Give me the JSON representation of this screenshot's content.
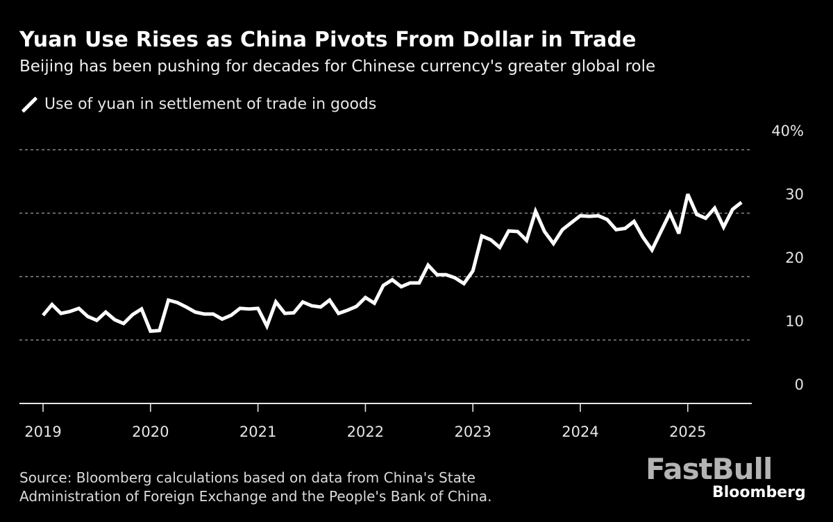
{
  "header": {
    "title": "Yuan Use Rises as China Pivots From Dollar in Trade",
    "subtitle": "Beijing has been pushing for decades for Chinese currency's greater global role"
  },
  "footer": {
    "source": "Source: Bloomberg calculations based on data from China's State\nAdministration of Foreign Exchange and the People's Bank of China."
  },
  "brand": {
    "watermark": "FastBull",
    "publisher": "Bloomberg"
  },
  "colors": {
    "background": "#000000",
    "line": "#ffffff",
    "grid": "#8a8a8a"
  },
  "chart_data": {
    "type": "line",
    "title": "Yuan Use Rises as China Pivots From Dollar in Trade",
    "subtitle": "Beijing has been pushing for decades for Chinese currency's greater global role",
    "xlabel": "",
    "ylabel": "",
    "y_unit": "%",
    "ylim": [
      0,
      40
    ],
    "yticks": [
      0,
      10,
      20,
      30,
      40
    ],
    "ytick_labels": [
      "0",
      "10",
      "20",
      "30",
      "40%"
    ],
    "y_axis_position": "right",
    "grid": true,
    "x_start": "2019-01",
    "x_frequency": "monthly",
    "xticks": [
      "2019",
      "2020",
      "2021",
      "2022",
      "2023",
      "2024",
      "2025"
    ],
    "xlim_months": [
      0,
      80
    ],
    "legend": {
      "position": "top-left",
      "entries": [
        "Use of yuan in settlement of trade in goods"
      ]
    },
    "series": [
      {
        "name": "Use of yuan in settlement of trade in goods",
        "values": [
          13.9,
          15.6,
          14.2,
          14.5,
          15.0,
          13.7,
          13.1,
          14.4,
          13.2,
          12.6,
          14.0,
          14.9,
          11.4,
          11.5,
          16.3,
          15.9,
          15.2,
          14.4,
          14.1,
          14.1,
          13.3,
          13.9,
          15.0,
          14.9,
          15.0,
          12.2,
          16.0,
          14.2,
          14.3,
          16.0,
          15.4,
          15.2,
          16.3,
          14.2,
          14.7,
          15.3,
          16.7,
          15.8,
          18.6,
          19.5,
          18.4,
          19.0,
          19.0,
          21.8,
          20.3,
          20.3,
          19.8,
          18.9,
          20.9,
          26.4,
          25.8,
          24.6,
          27.2,
          27.1,
          25.7,
          30.3,
          27.1,
          25.2,
          27.4,
          28.5,
          29.6,
          29.5,
          29.6,
          29.0,
          27.4,
          27.6,
          28.7,
          26.2,
          24.2,
          27.1,
          30.0,
          26.8,
          33.0,
          29.8,
          29.2,
          30.8,
          27.8,
          30.6,
          31.7
        ]
      }
    ]
  }
}
